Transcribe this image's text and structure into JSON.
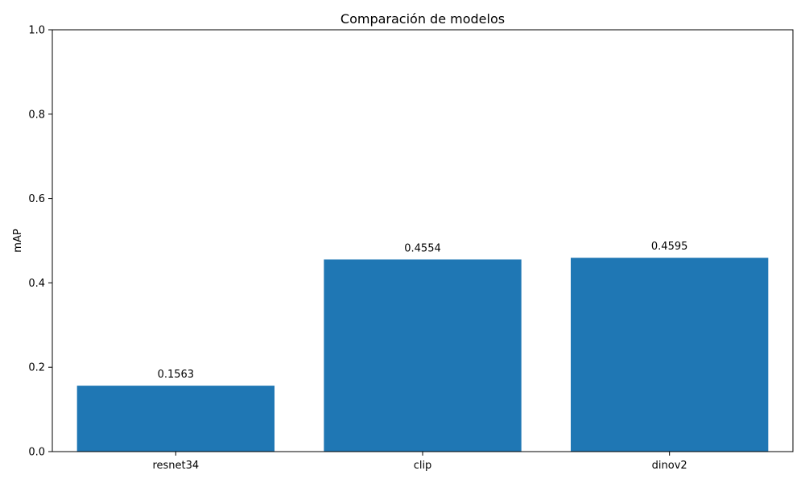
{
  "colors": {
    "bar": "#1f77b4",
    "axis": "#000000",
    "background": "#ffffff"
  },
  "chart_data": {
    "type": "bar",
    "title": "Comparación de modelos",
    "xlabel": "",
    "ylabel": "mAP",
    "categories": [
      "resnet34",
      "clip",
      "dinov2"
    ],
    "values": [
      0.1563,
      0.4554,
      0.4595
    ],
    "value_labels": [
      "0.1563",
      "0.4554",
      "0.4595"
    ],
    "ylim": [
      0,
      1.0
    ],
    "yticks": [
      0.0,
      0.2,
      0.4,
      0.6,
      0.8,
      1.0
    ],
    "ytick_labels": [
      "0.0",
      "0.2",
      "0.4",
      "0.6",
      "0.8",
      "1.0"
    ],
    "grid": false,
    "legend": "none"
  }
}
